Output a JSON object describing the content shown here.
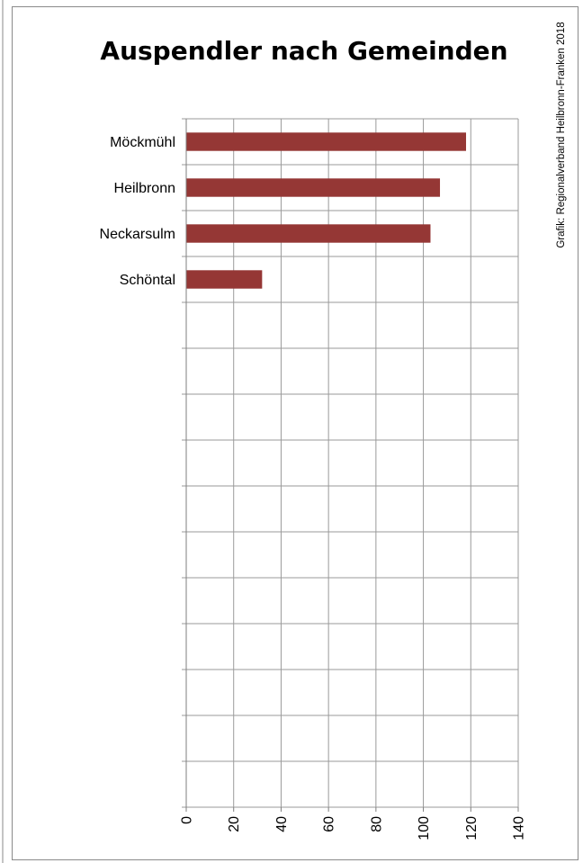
{
  "chart_data": {
    "type": "bar",
    "orientation": "horizontal",
    "title": "Auspendler nach Gemeinden",
    "source_note": "Grafik: Regionalverband Heilbronn-Franken 2018",
    "categories": [
      "Möckmühl",
      "Heilbronn",
      "Neckarsulm",
      "Schöntal"
    ],
    "values": [
      118,
      107,
      103,
      32
    ],
    "xlim": [
      0,
      140
    ],
    "x_ticks": [
      0,
      20,
      40,
      60,
      80,
      100,
      120,
      140
    ],
    "x_tick_labels": [
      "0",
      "20",
      "40",
      "60",
      "80",
      "100",
      "120",
      "140"
    ],
    "category_slots": 15,
    "grid": true,
    "bar_color": "#953735"
  }
}
